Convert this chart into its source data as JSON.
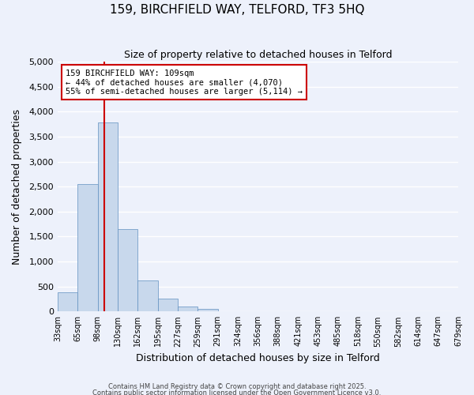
{
  "title1": "159, BIRCHFIELD WAY, TELFORD, TF3 5HQ",
  "title2": "Size of property relative to detached houses in Telford",
  "xlabel": "Distribution of detached houses by size in Telford",
  "ylabel": "Number of detached properties",
  "bar_values": [
    390,
    2550,
    3780,
    1650,
    620,
    250,
    100,
    50,
    0,
    0,
    0,
    0,
    0,
    0,
    0,
    0,
    0,
    0,
    0,
    0
  ],
  "x_labels": [
    "33sqm",
    "65sqm",
    "98sqm",
    "130sqm",
    "162sqm",
    "195sqm",
    "227sqm",
    "259sqm",
    "291sqm",
    "324sqm",
    "356sqm",
    "388sqm",
    "421sqm",
    "453sqm",
    "485sqm",
    "518sqm",
    "550sqm",
    "582sqm",
    "614sqm",
    "647sqm",
    "679sqm"
  ],
  "bar_color": "#c8d8ec",
  "bar_edge_color": "#6090c0",
  "ylim": [
    0,
    5000
  ],
  "yticks": [
    0,
    500,
    1000,
    1500,
    2000,
    2500,
    3000,
    3500,
    4000,
    4500,
    5000
  ],
  "vline_x": 2.33,
  "vline_color": "#cc0000",
  "annotation_title": "159 BIRCHFIELD WAY: 109sqm",
  "annotation_line2": "← 44% of detached houses are smaller (4,070)",
  "annotation_line3": "55% of semi-detached houses are larger (5,114) →",
  "annotation_box_color": "#cc0000",
  "background_color": "#edf1fb",
  "grid_color": "#ffffff",
  "footer1": "Contains HM Land Registry data © Crown copyright and database right 2025.",
  "footer2": "Contains public sector information licensed under the Open Government Licence v3.0."
}
